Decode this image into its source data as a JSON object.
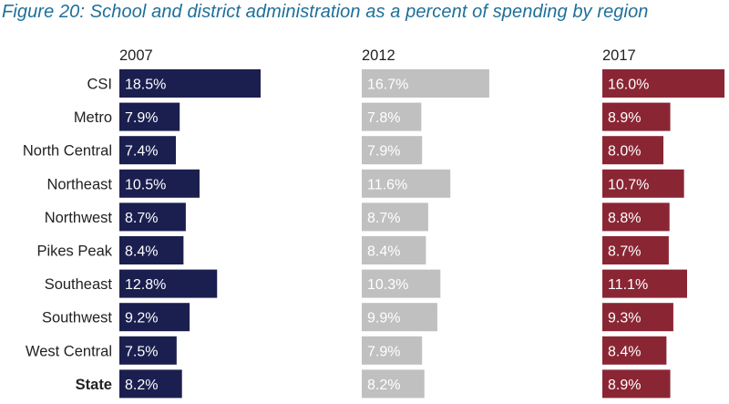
{
  "title": "Figure 20: School and district administration as a percent of spending by region",
  "colors": {
    "title": "#1e6f9a",
    "series_2007": "#1b1f4f",
    "series_2012": "#c0c0c0",
    "series_2017": "#8a2634",
    "label_text": "#222222",
    "value_text": "#ffffff"
  },
  "chart_data": {
    "type": "bar",
    "orientation": "horizontal",
    "layout": "small-multiples",
    "title": "Figure 20: School and district administration as a percent of spending by region",
    "categories": [
      "CSI",
      "Metro",
      "North Central",
      "Northeast",
      "Northwest",
      "Pikes Peak",
      "Southeast",
      "Southwest",
      "West Central",
      "State"
    ],
    "bold_categories": [
      "State"
    ],
    "value_format": "percent_1dp",
    "xlim": [
      0,
      18.5
    ],
    "grid": false,
    "legend": "none",
    "series": [
      {
        "name": "2007",
        "values": [
          18.5,
          7.9,
          7.4,
          10.5,
          8.7,
          8.4,
          12.8,
          9.2,
          7.5,
          8.2
        ]
      },
      {
        "name": "2012",
        "values": [
          16.7,
          7.8,
          7.9,
          11.6,
          8.7,
          8.4,
          10.3,
          9.9,
          7.9,
          8.2
        ]
      },
      {
        "name": "2017",
        "values": [
          16.0,
          8.9,
          8.0,
          10.7,
          8.8,
          8.7,
          11.1,
          9.3,
          8.4,
          8.9
        ]
      }
    ]
  }
}
